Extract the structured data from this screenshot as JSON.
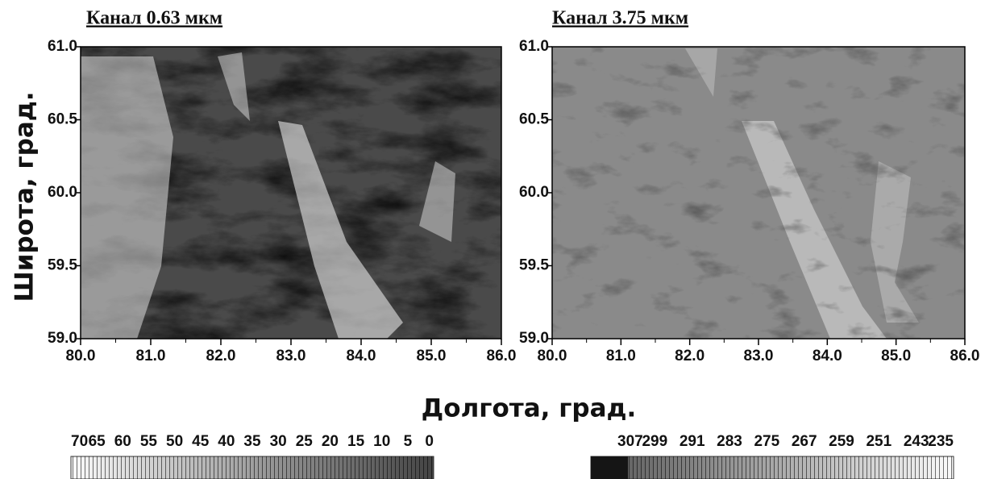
{
  "shared_labels": {
    "x": "Долгота, град.",
    "y": "Широта, град."
  },
  "chart_data": [
    {
      "type": "heatmap",
      "title": "Канал 0.63 мкм",
      "xlim": [
        80,
        86
      ],
      "xticks": [
        {
          "value": 80,
          "label": "80.0"
        },
        {
          "value": 81,
          "label": "81.0"
        },
        {
          "value": 82,
          "label": "82.0"
        },
        {
          "value": 83,
          "label": "83.0"
        },
        {
          "value": 84,
          "label": "84.0"
        },
        {
          "value": 85,
          "label": "85.0"
        },
        {
          "value": 86,
          "label": "86.0"
        }
      ],
      "ylim": [
        59,
        61
      ],
      "yticks": [
        {
          "value": 59,
          "label": "59.0"
        },
        {
          "value": 59.5,
          "label": "59.5"
        },
        {
          "value": 60,
          "label": "60.0"
        },
        {
          "value": 60.5,
          "label": "60.5"
        },
        {
          "value": 61,
          "label": "61.0"
        }
      ],
      "colorbar_ticks": [
        70,
        65,
        60,
        55,
        50,
        45,
        40,
        35,
        30,
        25,
        20,
        15,
        10,
        5,
        0
      ]
    },
    {
      "type": "heatmap",
      "title": "Канал 3.75 мкм",
      "xlim": [
        80,
        86
      ],
      "xticks": [
        {
          "value": 80,
          "label": "80.0"
        },
        {
          "value": 81,
          "label": "81.0"
        },
        {
          "value": 82,
          "label": "82.0"
        },
        {
          "value": 83,
          "label": "83.0"
        },
        {
          "value": 84,
          "label": "84.0"
        },
        {
          "value": 85,
          "label": "85.0"
        },
        {
          "value": 86,
          "label": "86.0"
        }
      ],
      "ylim": [
        59,
        61
      ],
      "yticks": [
        {
          "value": 59,
          "label": "59.0"
        },
        {
          "value": 59.5,
          "label": "59.5"
        },
        {
          "value": 60,
          "label": "60.0"
        },
        {
          "value": 60.5,
          "label": "60.5"
        },
        {
          "value": 61,
          "label": "61.0"
        }
      ],
      "colorbar_ticks": [
        307,
        299,
        291,
        283,
        275,
        267,
        259,
        251,
        243,
        235
      ]
    }
  ]
}
